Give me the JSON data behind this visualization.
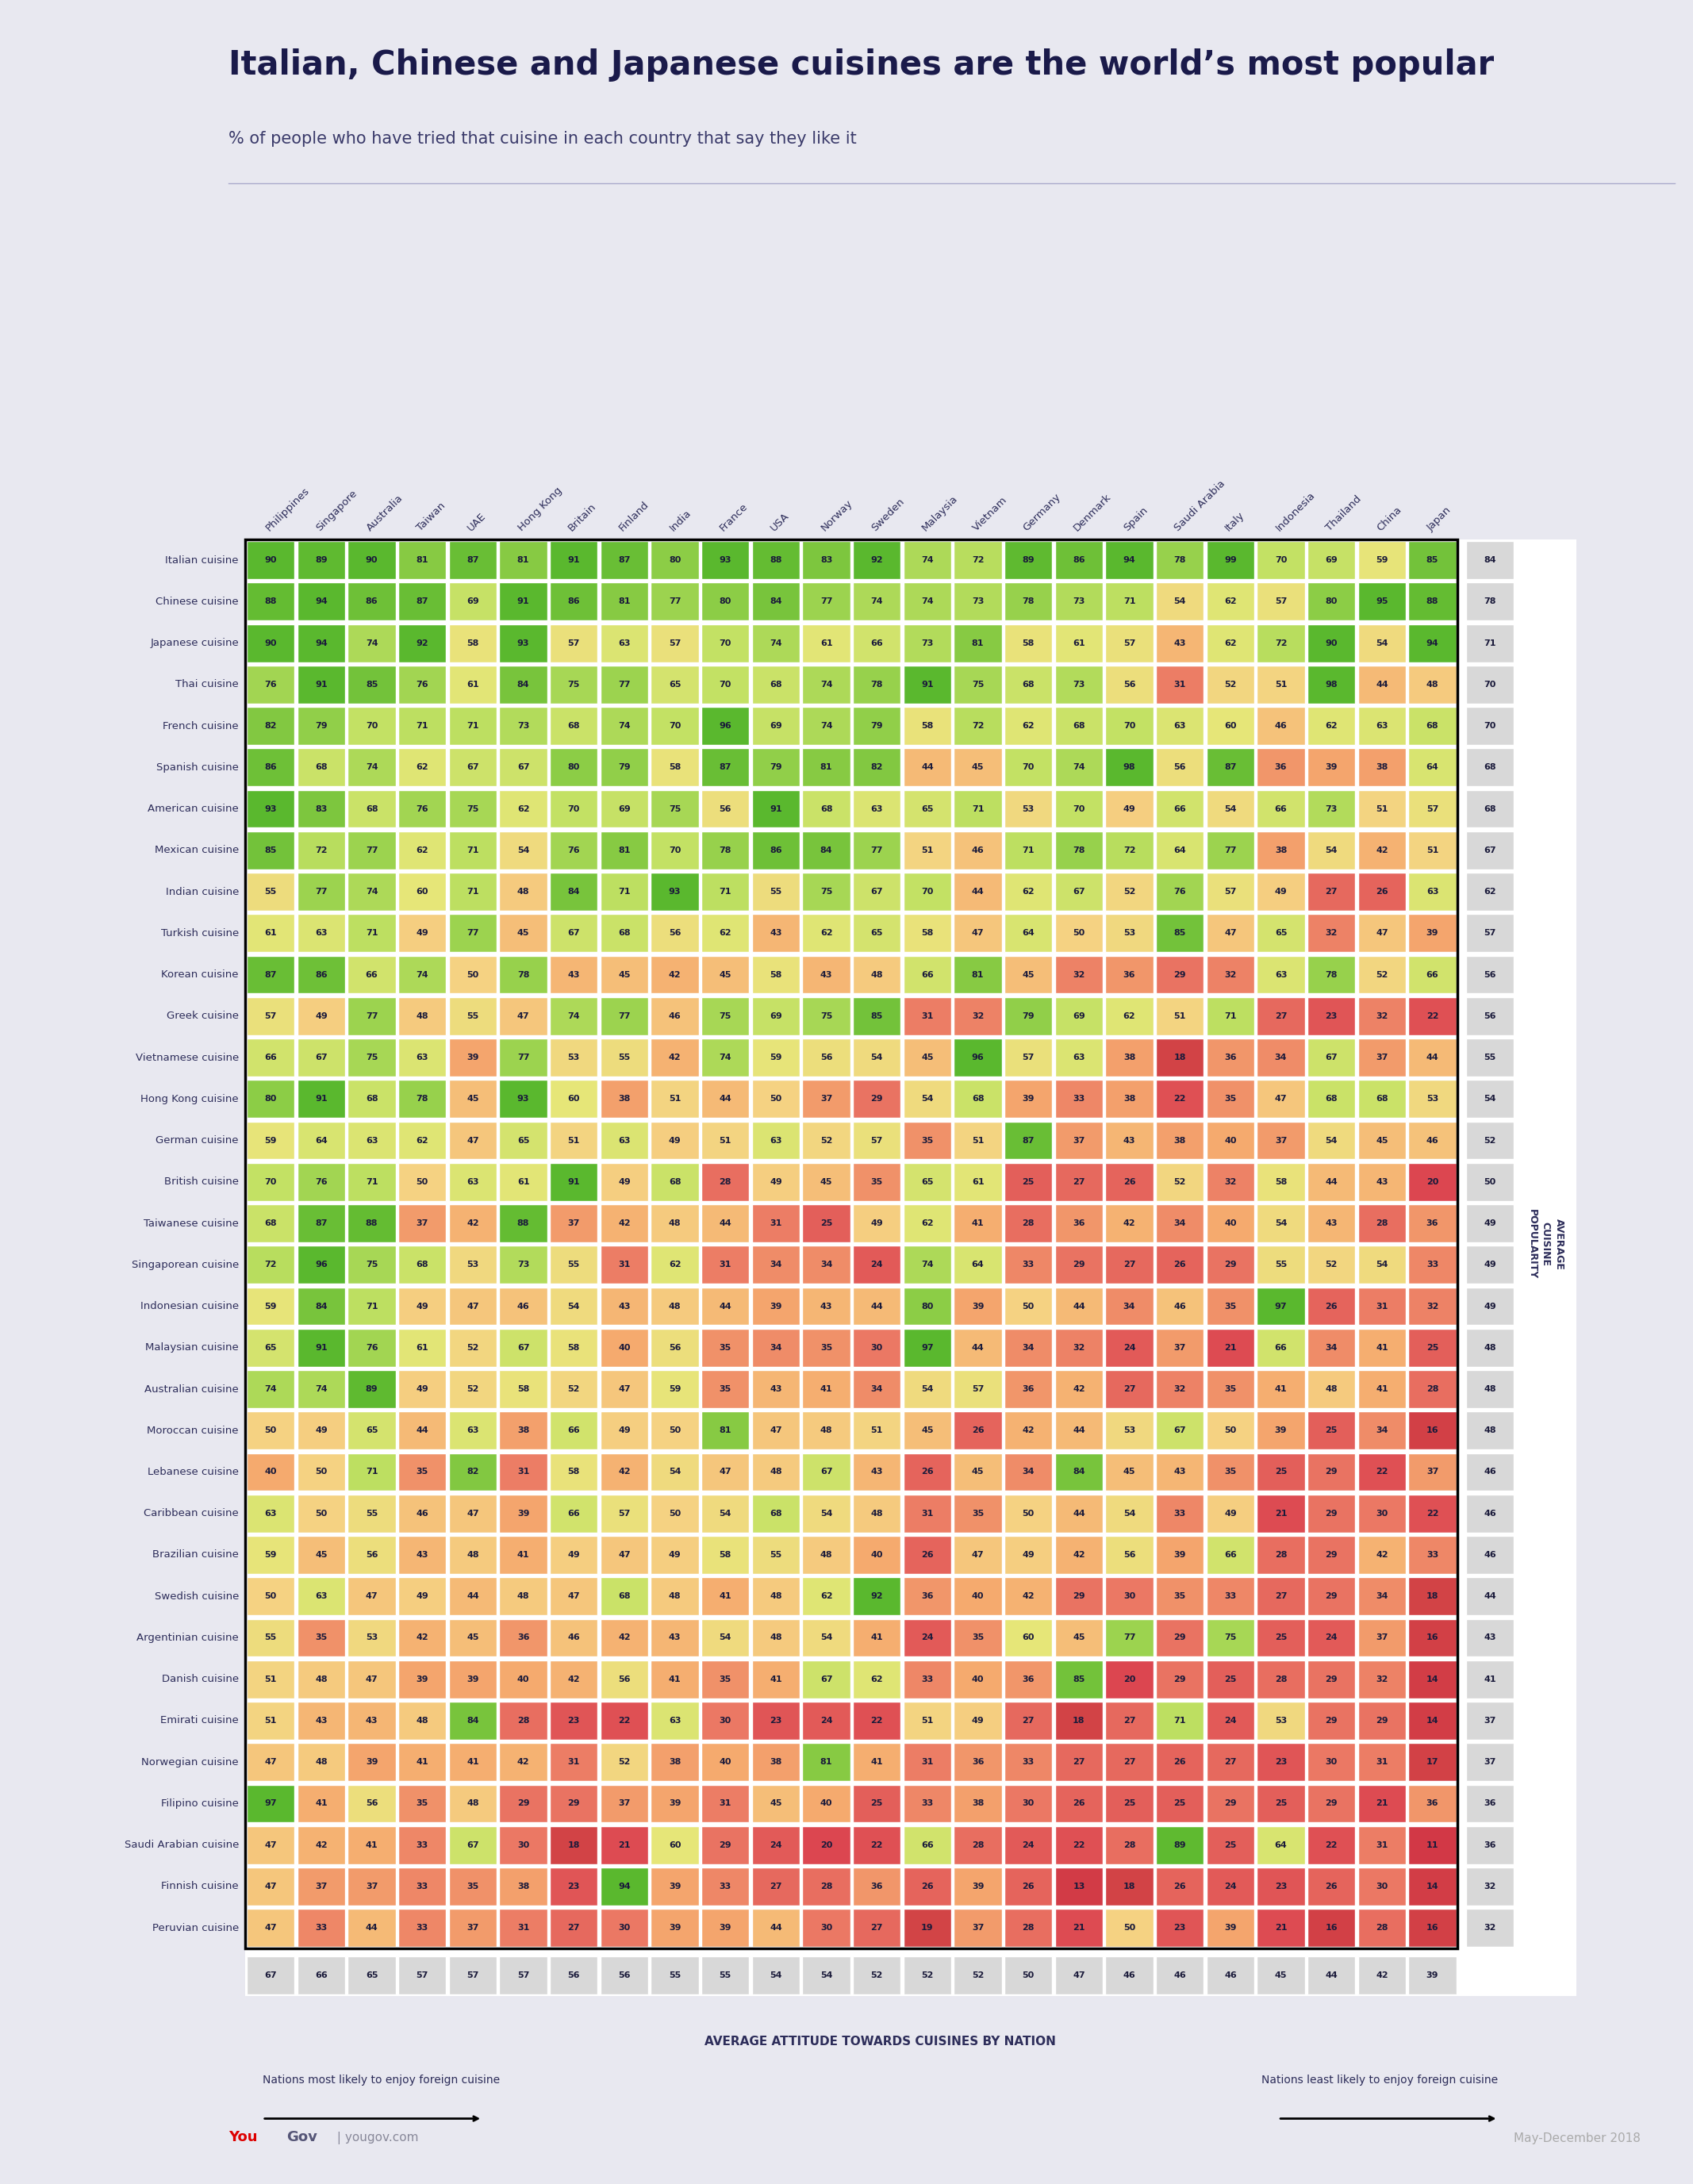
{
  "title": "Italian, Chinese and Japanese cuisines are the world’s most popular",
  "subtitle": "% of people who have tried that cuisine in each country that say they like it",
  "col_labels": [
    "Philippines",
    "Singapore",
    "Australia",
    "Taiwan",
    "UAE",
    "Hong Kong",
    "Britain",
    "Finland",
    "India",
    "France",
    "USA",
    "Norway",
    "Sweden",
    "Malaysia",
    "Vietnam",
    "Germany",
    "Denmark",
    "Spain",
    "Saudi Arabia",
    "Italy",
    "Indonesia",
    "Thailand",
    "China",
    "Japan"
  ],
  "row_labels": [
    "Italian cuisine",
    "Chinese cuisine",
    "Japanese cuisine",
    "Thai cuisine",
    "French cuisine",
    "Spanish cuisine",
    "American cuisine",
    "Mexican cuisine",
    "Indian cuisine",
    "Turkish cuisine",
    "Korean cuisine",
    "Greek cuisine",
    "Vietnamese cuisine",
    "Hong Kong cuisine",
    "German cuisine",
    "British cuisine",
    "Taiwanese cuisine",
    "Singaporean cuisine",
    "Indonesian cuisine",
    "Malaysian cuisine",
    "Australian cuisine",
    "Moroccan cuisine",
    "Lebanese cuisine",
    "Caribbean cuisine",
    "Brazilian cuisine",
    "Swedish cuisine",
    "Argentinian cuisine",
    "Danish cuisine",
    "Emirati cuisine",
    "Norwegian cuisine",
    "Filipino cuisine",
    "Saudi Arabian cuisine",
    "Finnish cuisine",
    "Peruvian cuisine"
  ],
  "avg_col": [
    84,
    78,
    71,
    70,
    70,
    68,
    68,
    67,
    62,
    57,
    56,
    56,
    55,
    54,
    52,
    50,
    49,
    49,
    49,
    48,
    48,
    48,
    46,
    46,
    46,
    44,
    43,
    41,
    37,
    37,
    36,
    36,
    32,
    32
  ],
  "avg_row": [
    67,
    66,
    65,
    57,
    57,
    57,
    56,
    56,
    55,
    55,
    54,
    54,
    52,
    52,
    52,
    50,
    47,
    46,
    46,
    46,
    45,
    44,
    42,
    39
  ],
  "data": [
    [
      90,
      89,
      90,
      81,
      87,
      81,
      91,
      87,
      80,
      93,
      88,
      83,
      92,
      74,
      72,
      89,
      86,
      94,
      78,
      99,
      70,
      69,
      59,
      85
    ],
    [
      88,
      94,
      86,
      87,
      69,
      91,
      86,
      81,
      77,
      80,
      84,
      77,
      74,
      74,
      73,
      78,
      73,
      71,
      54,
      62,
      57,
      80,
      95,
      88
    ],
    [
      90,
      94,
      74,
      92,
      58,
      93,
      57,
      63,
      57,
      70,
      74,
      61,
      66,
      73,
      81,
      58,
      61,
      57,
      43,
      62,
      72,
      90,
      54,
      94
    ],
    [
      76,
      91,
      85,
      76,
      61,
      84,
      75,
      77,
      65,
      70,
      68,
      74,
      78,
      91,
      75,
      68,
      73,
      56,
      31,
      52,
      51,
      98,
      44,
      48
    ],
    [
      82,
      79,
      70,
      71,
      71,
      73,
      68,
      74,
      70,
      96,
      69,
      74,
      79,
      58,
      72,
      62,
      68,
      70,
      63,
      60,
      46,
      62,
      63,
      68
    ],
    [
      86,
      68,
      74,
      62,
      67,
      67,
      80,
      79,
      58,
      87,
      79,
      81,
      82,
      44,
      45,
      70,
      74,
      98,
      56,
      87,
      36,
      39,
      38,
      64
    ],
    [
      93,
      83,
      68,
      76,
      75,
      62,
      70,
      69,
      75,
      56,
      91,
      68,
      63,
      65,
      71,
      53,
      70,
      49,
      66,
      54,
      66,
      73,
      51,
      57
    ],
    [
      85,
      72,
      77,
      62,
      71,
      54,
      76,
      81,
      70,
      78,
      86,
      84,
      77,
      51,
      46,
      71,
      78,
      72,
      64,
      77,
      38,
      54,
      42,
      51
    ],
    [
      55,
      77,
      74,
      60,
      71,
      48,
      84,
      71,
      93,
      71,
      55,
      75,
      67,
      70,
      44,
      62,
      67,
      52,
      76,
      57,
      49,
      27,
      26,
      63
    ],
    [
      61,
      63,
      71,
      49,
      77,
      45,
      67,
      68,
      56,
      62,
      43,
      62,
      65,
      58,
      47,
      64,
      50,
      53,
      85,
      47,
      65,
      32,
      47,
      39
    ],
    [
      87,
      86,
      66,
      74,
      50,
      78,
      43,
      45,
      42,
      45,
      58,
      43,
      48,
      66,
      81,
      45,
      32,
      36,
      29,
      32,
      63,
      78,
      52,
      66
    ],
    [
      57,
      49,
      77,
      48,
      55,
      47,
      74,
      77,
      46,
      75,
      69,
      75,
      85,
      31,
      32,
      79,
      69,
      62,
      51,
      71,
      27,
      23,
      32,
      22
    ],
    [
      66,
      67,
      75,
      63,
      39,
      77,
      53,
      55,
      42,
      74,
      59,
      56,
      54,
      45,
      96,
      57,
      63,
      38,
      18,
      36,
      34,
      67,
      37,
      44
    ],
    [
      80,
      91,
      68,
      78,
      45,
      93,
      60,
      38,
      51,
      44,
      50,
      37,
      29,
      54,
      68,
      39,
      33,
      38,
      22,
      35,
      47,
      68,
      68,
      53
    ],
    [
      59,
      64,
      63,
      62,
      47,
      65,
      51,
      63,
      49,
      51,
      63,
      52,
      57,
      35,
      51,
      87,
      37,
      43,
      38,
      40,
      37,
      54,
      45,
      46
    ],
    [
      70,
      76,
      71,
      50,
      63,
      61,
      91,
      49,
      68,
      28,
      49,
      45,
      35,
      65,
      61,
      25,
      27,
      26,
      52,
      32,
      58,
      44,
      43,
      20
    ],
    [
      68,
      87,
      88,
      37,
      42,
      88,
      37,
      42,
      48,
      44,
      31,
      25,
      49,
      62,
      41,
      28,
      36,
      42,
      34,
      40,
      54,
      43,
      28,
      36
    ],
    [
      72,
      96,
      75,
      68,
      53,
      73,
      55,
      31,
      62,
      31,
      34,
      34,
      24,
      74,
      64,
      33,
      29,
      27,
      26,
      29,
      55,
      52,
      54,
      33
    ],
    [
      59,
      84,
      71,
      49,
      47,
      46,
      54,
      43,
      48,
      44,
      39,
      43,
      44,
      80,
      39,
      50,
      44,
      34,
      46,
      35,
      97,
      26,
      31,
      32
    ],
    [
      65,
      91,
      76,
      61,
      52,
      67,
      58,
      40,
      56,
      35,
      34,
      35,
      30,
      97,
      44,
      34,
      32,
      24,
      37,
      21,
      66,
      34,
      41,
      25
    ],
    [
      74,
      74,
      89,
      49,
      52,
      58,
      52,
      47,
      59,
      35,
      43,
      41,
      34,
      54,
      57,
      36,
      42,
      27,
      32,
      35,
      41,
      48,
      41,
      28
    ],
    [
      50,
      49,
      65,
      44,
      63,
      38,
      66,
      49,
      50,
      81,
      47,
      48,
      51,
      45,
      26,
      42,
      44,
      53,
      67,
      50,
      39,
      25,
      34,
      16
    ],
    [
      40,
      50,
      71,
      35,
      82,
      31,
      58,
      42,
      54,
      47,
      48,
      67,
      43,
      26,
      45,
      34,
      84,
      45,
      43,
      35,
      25,
      29,
      22,
      37
    ],
    [
      63,
      50,
      55,
      46,
      47,
      39,
      66,
      57,
      50,
      54,
      68,
      54,
      48,
      31,
      35,
      50,
      44,
      54,
      33,
      49,
      21,
      29,
      30,
      22
    ],
    [
      59,
      45,
      56,
      43,
      48,
      41,
      49,
      47,
      49,
      58,
      55,
      48,
      40,
      26,
      47,
      49,
      42,
      56,
      39,
      66,
      28,
      29,
      42,
      33
    ],
    [
      50,
      63,
      47,
      49,
      44,
      48,
      47,
      68,
      48,
      41,
      48,
      62,
      92,
      36,
      40,
      42,
      29,
      30,
      35,
      33,
      27,
      29,
      34,
      18
    ],
    [
      55,
      35,
      53,
      42,
      45,
      36,
      46,
      42,
      43,
      54,
      48,
      54,
      41,
      24,
      35,
      60,
      45,
      77,
      29,
      75,
      25,
      24,
      37,
      16
    ],
    [
      51,
      48,
      47,
      39,
      39,
      40,
      42,
      56,
      41,
      35,
      41,
      67,
      62,
      33,
      40,
      36,
      85,
      20,
      29,
      25,
      28,
      29,
      32,
      14
    ],
    [
      51,
      43,
      43,
      48,
      84,
      28,
      23,
      22,
      63,
      30,
      23,
      24,
      22,
      51,
      49,
      27,
      18,
      27,
      71,
      24,
      53,
      29,
      29,
      14
    ],
    [
      47,
      48,
      39,
      41,
      41,
      42,
      31,
      52,
      38,
      40,
      38,
      81,
      41,
      31,
      36,
      33,
      27,
      27,
      26,
      27,
      23,
      30,
      31,
      17
    ],
    [
      97,
      41,
      56,
      35,
      48,
      29,
      29,
      37,
      39,
      31,
      45,
      40,
      25,
      33,
      38,
      30,
      26,
      25,
      25,
      29,
      25,
      29,
      21,
      36
    ],
    [
      47,
      42,
      41,
      33,
      67,
      30,
      18,
      21,
      60,
      29,
      24,
      20,
      22,
      66,
      28,
      24,
      22,
      28,
      89,
      25,
      64,
      22,
      31,
      11
    ],
    [
      47,
      37,
      37,
      33,
      35,
      38,
      23,
      94,
      39,
      33,
      27,
      28,
      36,
      26,
      39,
      26,
      13,
      18,
      26,
      24,
      23,
      26,
      30,
      14
    ],
    [
      47,
      33,
      44,
      33,
      37,
      31,
      27,
      30,
      39,
      39,
      44,
      30,
      27,
      19,
      37,
      28,
      21,
      50,
      23,
      39,
      21,
      16,
      28,
      16
    ]
  ],
  "background_color": "#e8e8f0",
  "title_color": "#1a1a4a",
  "subtitle_color": "#3a3a6a",
  "cell_text_color": "#1a1a3a",
  "label_color": "#2d2d5a",
  "avg_bg_color": "#d8d8d8",
  "avg_row_label": "AVERAGE ATTITUDE TOWARDS CUISINES BY NATION",
  "right_label_lines": [
    "A",
    "V",
    "E",
    "R",
    "A",
    "G",
    "E",
    " ",
    "C",
    "U",
    "I",
    "S",
    "I",
    "N",
    "E",
    " ",
    "P",
    "O",
    "P",
    "U",
    "L",
    "A",
    "R",
    "I",
    "T",
    "Y"
  ],
  "right_label": "AVERAGE\nCUISINE\nPOPULARITY",
  "footer_left": "Nations most likely to enjoy foreign cuisine",
  "footer_right": "Nations least likely to enjoy foreign cuisine",
  "source_you": "You",
  "source_gov": "Gov",
  "source_rest": " | yougov.com",
  "source_right": "May-December 2018"
}
